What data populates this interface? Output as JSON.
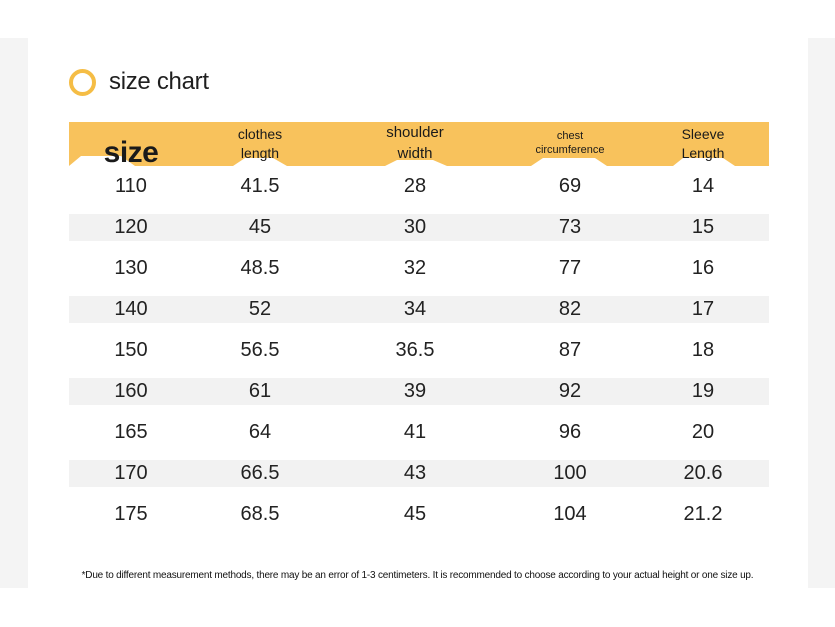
{
  "title": "size chart",
  "headers": [
    {
      "key": "size",
      "lines": [
        "size"
      ]
    },
    {
      "key": "clothes-length",
      "lines": [
        "clothes",
        "length"
      ]
    },
    {
      "key": "shoulder-width",
      "lines": [
        "shoulder",
        "width"
      ]
    },
    {
      "key": "chest-circumference",
      "lines": [
        "chest",
        "circumference"
      ]
    },
    {
      "key": "sleeve-length",
      "lines": [
        "Sleeve",
        "Length"
      ]
    }
  ],
  "rows": [
    [
      "110",
      "41.5",
      "28",
      "69",
      "14"
    ],
    [
      "120",
      "45",
      "30",
      "73",
      "15"
    ],
    [
      "130",
      "48.5",
      "32",
      "77",
      "16"
    ],
    [
      "140",
      "52",
      "34",
      "82",
      "17"
    ],
    [
      "150",
      "56.5",
      "36.5",
      "87",
      "18"
    ],
    [
      "160",
      "61",
      "39",
      "92",
      "19"
    ],
    [
      "165",
      "64",
      "41",
      "96",
      "20"
    ],
    [
      "170",
      "66.5",
      "43",
      "100",
      "20.6"
    ],
    [
      "175",
      "68.5",
      "45",
      "104",
      "21.2"
    ]
  ],
  "note": "*Due to different measurement methods, there may be an error of 1-3 centimeters. It is recommended to choose according to your actual height or one size up.",
  "colors": {
    "accent": "#f8c25c",
    "ring": "#f5bd45",
    "stripe": "#f2f2f2"
  }
}
